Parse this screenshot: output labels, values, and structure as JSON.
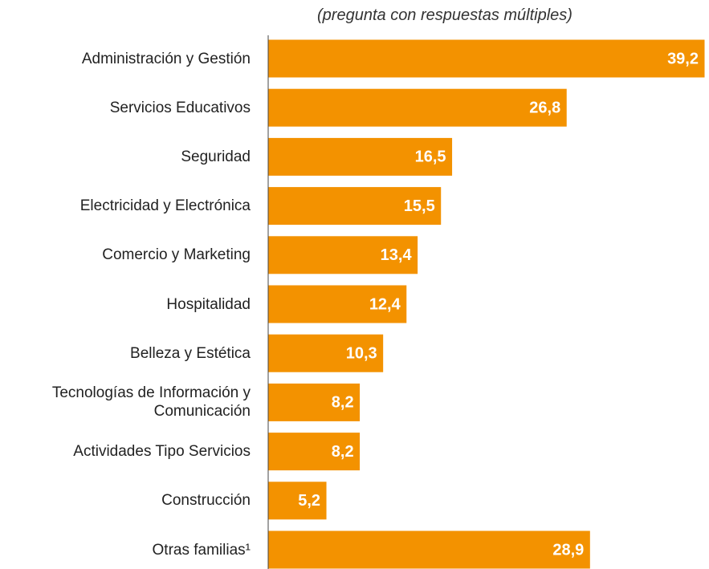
{
  "chart_data": {
    "type": "bar",
    "orientation": "horizontal",
    "subtitle": "(pregunta con respuestas múltiples)",
    "categories": [
      "Administración y Gestión",
      "Servicios Educativos",
      "Seguridad",
      "Electricidad y Electrónica",
      "Comercio y Marketing",
      "Hospitalidad",
      "Belleza y Estética",
      "Tecnologías de Información y Comunicación",
      "Actividades Tipo Servicios",
      "Construcción",
      "Otras familias¹"
    ],
    "values": [
      39.2,
      26.8,
      16.5,
      15.5,
      13.4,
      12.4,
      10.3,
      8.2,
      8.2,
      5.2,
      28.9
    ],
    "value_labels": [
      "39,2",
      "26,8",
      "16,5",
      "15,5",
      "13,4",
      "12,4",
      "10,3",
      "8,2",
      "8,2",
      "5,2",
      "28,9"
    ],
    "color": "#f39200"
  }
}
